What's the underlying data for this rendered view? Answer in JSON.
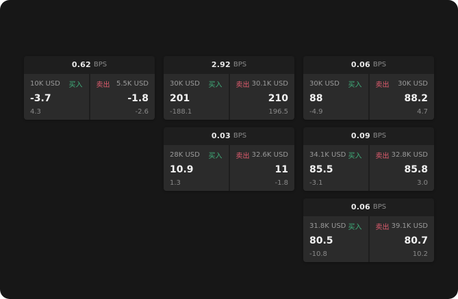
{
  "unit": "BPS",
  "labels": {
    "buy": "买入",
    "sell": "卖出"
  },
  "colors": {
    "buy": "#3fae7a",
    "sell": "#e05c6e",
    "background": "#171717",
    "panel": "#2b2b2b"
  },
  "cards": [
    {
      "bps": "0.62",
      "unit": "BPS",
      "buy": {
        "size": "10K USD",
        "label": "买入",
        "price": "-3.7",
        "sub": "4.3"
      },
      "sell": {
        "size": "5.5K USD",
        "label": "卖出",
        "price": "-1.8",
        "sub": "-2.6"
      }
    },
    {
      "bps": "2.92",
      "unit": "BPS",
      "buy": {
        "size": "30K USD",
        "label": "买入",
        "price": "201",
        "sub": "-188.1"
      },
      "sell": {
        "size": "30.1K USD",
        "label": "卖出",
        "price": "210",
        "sub": "196.5"
      }
    },
    {
      "bps": "0.06",
      "unit": "BPS",
      "buy": {
        "size": "30K USD",
        "label": "买入",
        "price": "88",
        "sub": "-4.9"
      },
      "sell": {
        "size": "30K USD",
        "label": "卖出",
        "price": "88.2",
        "sub": "4.7"
      }
    },
    {
      "bps": "0.03",
      "unit": "BPS",
      "buy": {
        "size": "28K USD",
        "label": "买入",
        "price": "10.9",
        "sub": "1.3"
      },
      "sell": {
        "size": "32.6K USD",
        "label": "卖出",
        "price": "11",
        "sub": "-1.8"
      }
    },
    {
      "bps": "0.09",
      "unit": "BPS",
      "buy": {
        "size": "34.1K USD",
        "label": "买入",
        "price": "85.5",
        "sub": "-3.1"
      },
      "sell": {
        "size": "32.8K USD",
        "label": "卖出",
        "price": "85.8",
        "sub": "3.0"
      }
    },
    {
      "bps": "0.06",
      "unit": "BPS",
      "buy": {
        "size": "31.8K USD",
        "label": "买入",
        "price": "80.5",
        "sub": "-10.8"
      },
      "sell": {
        "size": "39.1K USD",
        "label": "卖出",
        "price": "80.7",
        "sub": "10.2"
      }
    }
  ]
}
